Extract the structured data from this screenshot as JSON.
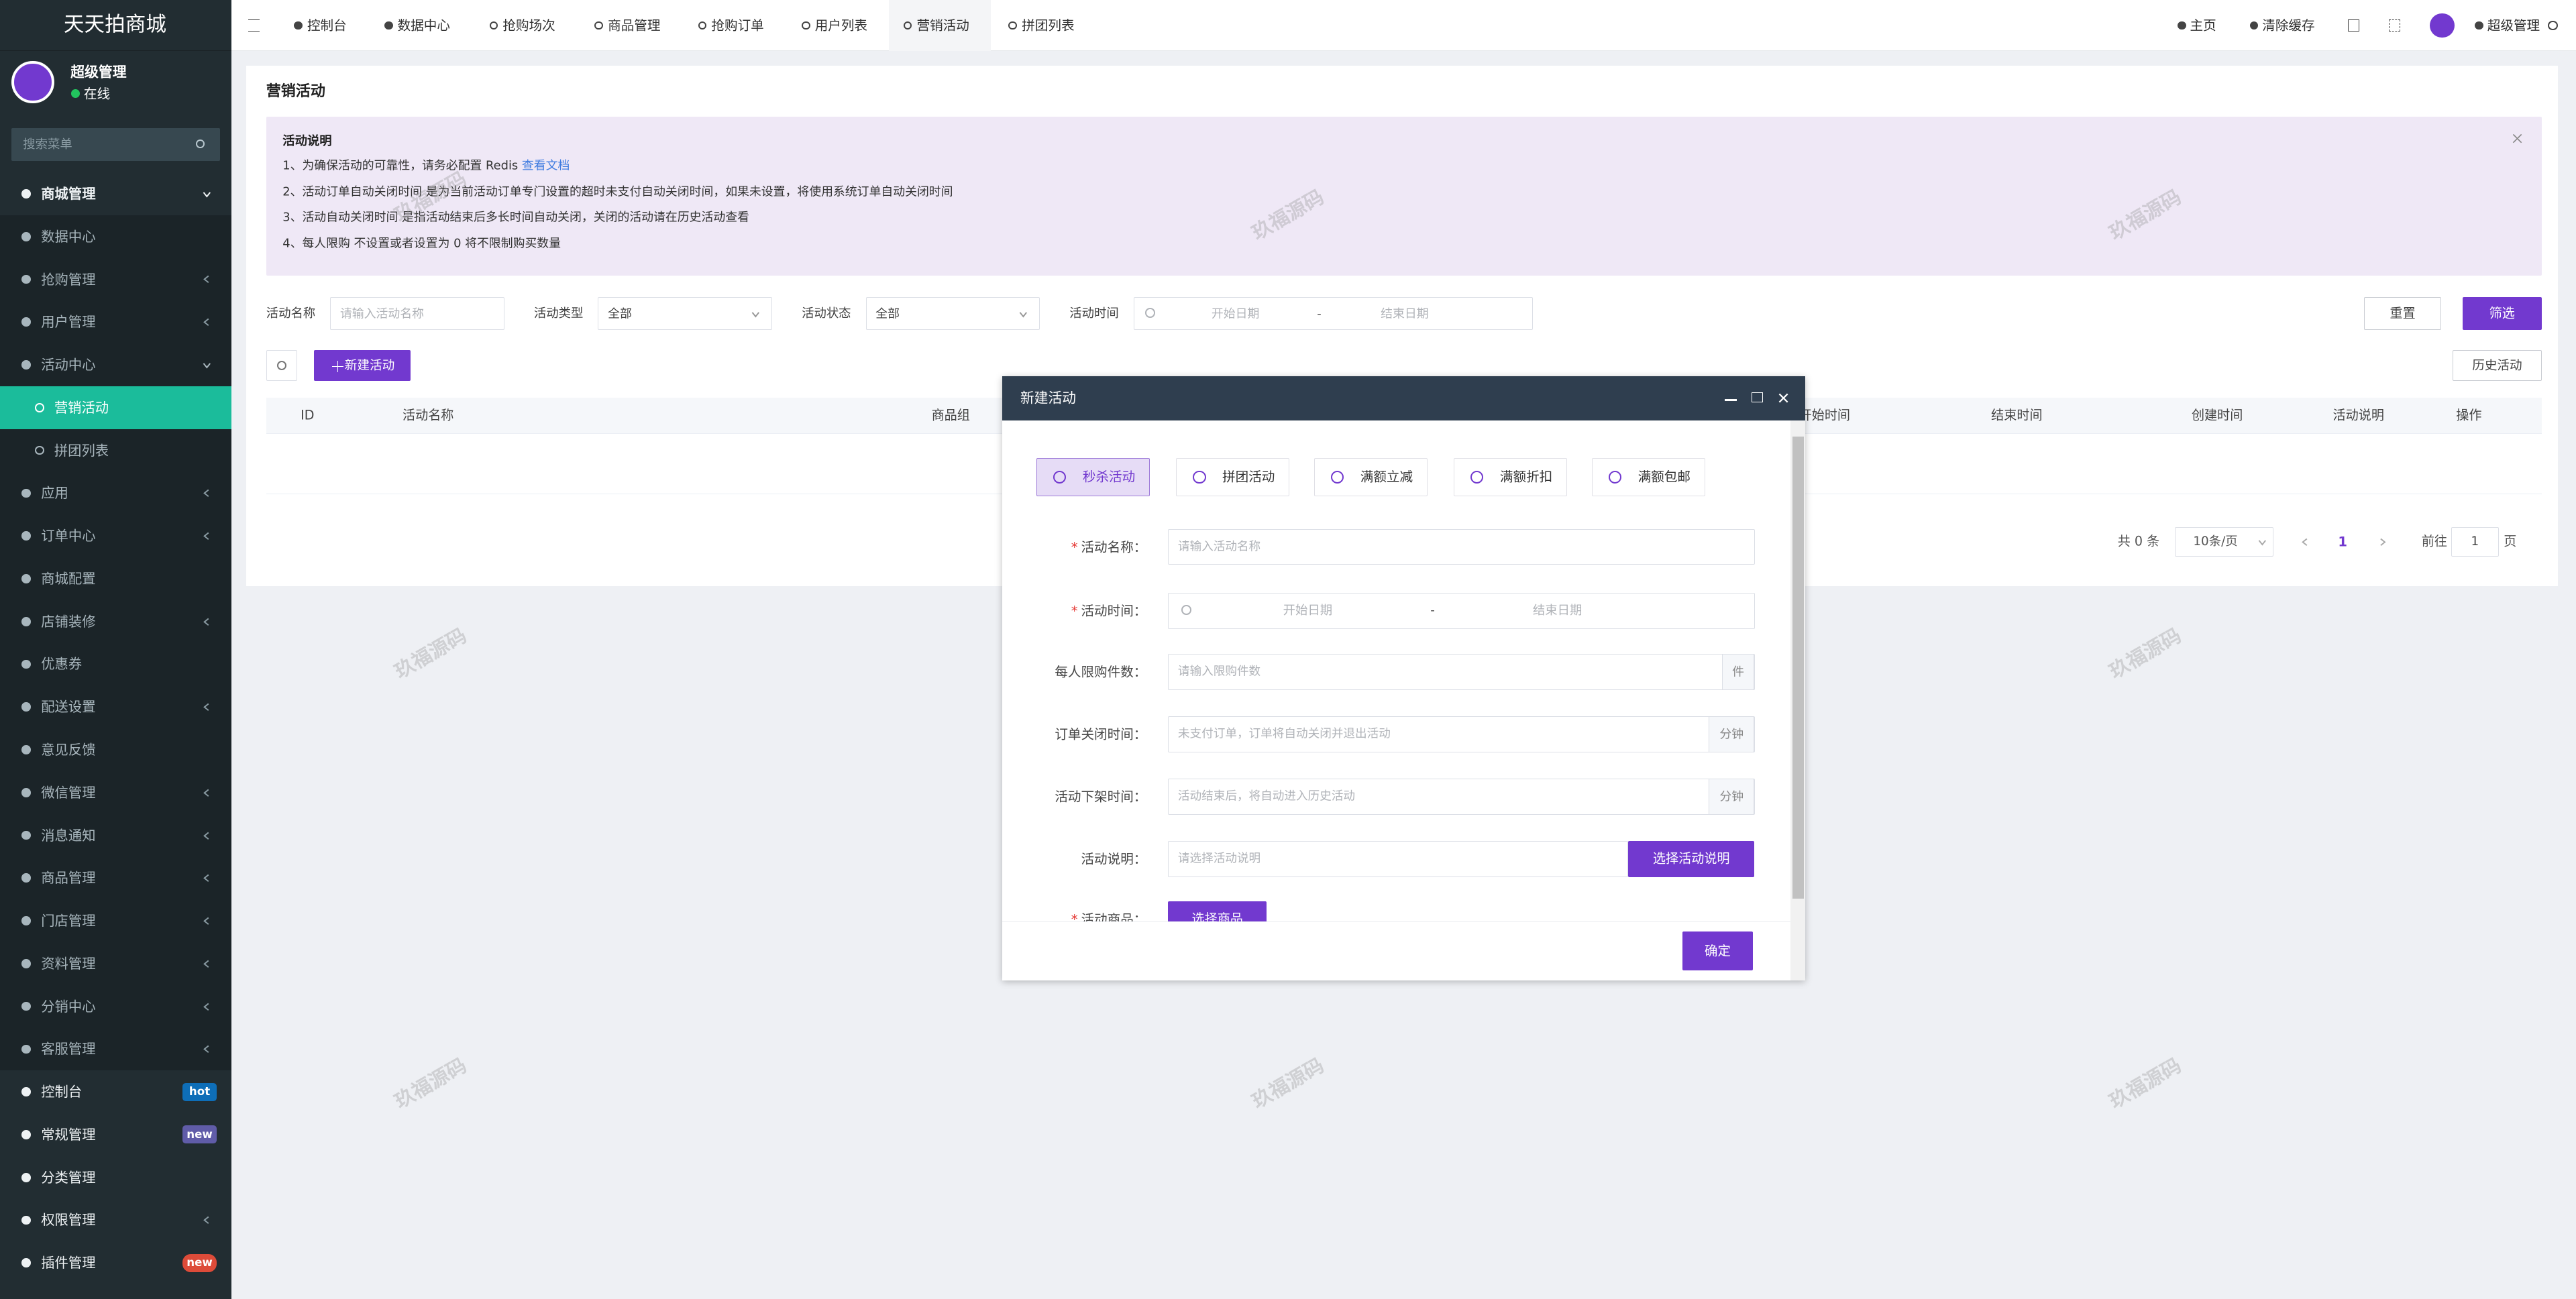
{
  "sidebar": {
    "brand": "天天拍商城",
    "user_name": "超级管理",
    "user_status": "在线",
    "search_placeholder": "搜索菜单",
    "menu": [
      {
        "label": "商城管理",
        "level": 0,
        "expanded": true
      },
      {
        "label": "数据中心",
        "level": 1
      },
      {
        "label": "抢购管理",
        "level": 1,
        "has_children": true
      },
      {
        "label": "用户管理",
        "level": 1,
        "has_children": true
      },
      {
        "label": "活动中心",
        "level": 1,
        "expanded": true
      },
      {
        "label": "营销活动",
        "level": 2,
        "active": true
      },
      {
        "label": "拼团列表",
        "level": 2
      },
      {
        "label": "应用",
        "level": 1,
        "has_children": true
      },
      {
        "label": "订单中心",
        "level": 1,
        "has_children": true
      },
      {
        "label": "商城配置",
        "level": 1
      },
      {
        "label": "店铺装修",
        "level": 1,
        "has_children": true
      },
      {
        "label": "优惠券",
        "level": 1
      },
      {
        "label": "配送设置",
        "level": 1,
        "has_children": true
      },
      {
        "label": "意见反馈",
        "level": 1
      },
      {
        "label": "微信管理",
        "level": 1,
        "has_children": true
      },
      {
        "label": "消息通知",
        "level": 1,
        "has_children": true
      },
      {
        "label": "商品管理",
        "level": 1,
        "has_children": true
      },
      {
        "label": "门店管理",
        "level": 1,
        "has_children": true
      },
      {
        "label": "资料管理",
        "level": 1,
        "has_children": true
      },
      {
        "label": "分销中心",
        "level": 1,
        "has_children": true
      },
      {
        "label": "客服管理",
        "level": 1,
        "has_children": true
      },
      {
        "label": "控制台",
        "level": 0,
        "badge": "hot",
        "badge_color": "#0e6eb8"
      },
      {
        "label": "常规管理",
        "level": 0,
        "badge": "new",
        "badge_color": "#605ca8"
      },
      {
        "label": "分类管理",
        "level": 0
      },
      {
        "label": "权限管理",
        "level": 0,
        "has_children": true
      },
      {
        "label": "插件管理",
        "level": 0,
        "badge": "new",
        "badge_color": "#dd4b39"
      }
    ]
  },
  "topbar": {
    "tabs": [
      "控制台",
      "数据中心",
      "抢购场次",
      "商品管理",
      "抢购订单",
      "用户列表",
      "营销活动",
      "拼团列表"
    ],
    "active_tab": 6,
    "right": [
      "主页",
      "清除缓存",
      "超级管理"
    ]
  },
  "page": {
    "title": "营销活动",
    "notice": {
      "title": "活动说明",
      "lines": [
        {
          "text": "1、为确保活动的可靠性，请务必配置 Redis ",
          "link": "查看文档"
        },
        {
          "text": "2、活动订单自动关闭时间 是为当前活动订单专门设置的超时未支付自动关闭时间，如果未设置，将使用系统订单自动关闭时间"
        },
        {
          "text": "3、活动自动关闭时间 是指活动结束后多长时间自动关闭，关闭的活动请在历史活动查看"
        },
        {
          "text": "4、每人限购 不设置或者设置为 0 将不限制购买数量"
        }
      ]
    },
    "filters": [
      {
        "label": "活动名称",
        "placeholder": "请输入活动名称"
      },
      {
        "label": "活动类型",
        "value": "全部"
      },
      {
        "label": "活动状态",
        "value": "全部"
      },
      {
        "label": "活动时间",
        "start_placeholder": "开始日期",
        "separator": "-",
        "end_placeholder": "结束日期"
      }
    ],
    "buttons": {
      "reset": "重置",
      "filter": "筛选",
      "create": "新建活动",
      "history": "历史活动"
    },
    "table": {
      "columns": [
        "ID",
        "活动名称",
        "商品组",
        "开始时间",
        "结束时间",
        "创建时间",
        "活动说明",
        "操作"
      ]
    },
    "pagination": {
      "total": "共 0 条",
      "page_size": "10条/页",
      "current": 1,
      "goto": "前往",
      "goto_value": 1,
      "page_suffix": "页"
    }
  },
  "watermark": "玖福源码",
  "modal": {
    "title": "新建活动",
    "types": [
      "秒杀活动",
      "拼团活动",
      "满额立减",
      "满额折扣",
      "满额包邮"
    ],
    "active_type": 0,
    "required_mark": "*",
    "fields": [
      {
        "label": "活动名称：",
        "required": true,
        "placeholder": "请输入活动名称"
      },
      {
        "label": "活动时间：",
        "required": true,
        "start_placeholder": "开始日期",
        "separator": "-",
        "end_placeholder": "结束日期"
      },
      {
        "label": "每人限购件数：",
        "placeholder": "请输入限购件数",
        "suffix": "件"
      },
      {
        "label": "订单关闭时间：",
        "placeholder": "未支付订单，订单将自动关闭并退出活动",
        "suffix": "分钟"
      },
      {
        "label": "活动下架时间：",
        "placeholder": "活动结束后，将自动进入历史活动",
        "suffix": "分钟"
      },
      {
        "label": "活动说明：",
        "placeholder": "请选择活动说明",
        "button": "选择活动说明"
      },
      {
        "label": "活动商品：",
        "required": true,
        "button": "选择商品"
      }
    ],
    "confirm": "确定"
  }
}
